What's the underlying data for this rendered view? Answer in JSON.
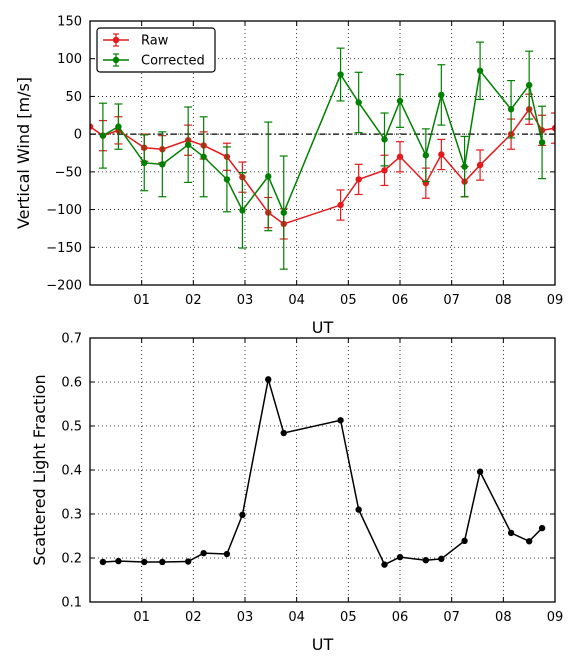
{
  "chart_data": [
    {
      "type": "line",
      "title": "",
      "xlabel": "UT",
      "ylabel": "Vertical Wind [m/s]",
      "xlim": [
        0.0,
        9.0
      ],
      "ylim": [
        -200,
        150
      ],
      "x_ticks": [
        1,
        2,
        3,
        4,
        5,
        6,
        7,
        8,
        9
      ],
      "x_tick_labels": [
        "01",
        "02",
        "03",
        "04",
        "05",
        "06",
        "07",
        "08",
        "09"
      ],
      "y_ticks": [
        -200,
        -150,
        -100,
        -50,
        0,
        50,
        100,
        150
      ],
      "y_tick_labels": [
        "−200",
        "−150",
        "−100",
        "−50",
        "0",
        "50",
        "100",
        "150"
      ],
      "grid": true,
      "zero_line": true,
      "legend_position": "top-left",
      "series": [
        {
          "name": "Raw",
          "color": "#e41a1c",
          "x": [
            0.0,
            0.25,
            0.55,
            1.05,
            1.4,
            1.9,
            2.2,
            2.65,
            2.95,
            3.45,
            3.75,
            4.85,
            5.2,
            5.7,
            6.0,
            6.5,
            6.8,
            7.25,
            7.55,
            8.15,
            8.5,
            8.75,
            9.0
          ],
          "y": [
            10,
            -2,
            5,
            -18,
            -20,
            -8,
            -15,
            -30,
            -57,
            -104,
            -119,
            -94,
            -60,
            -48,
            -30,
            -65,
            -27,
            -63,
            -41,
            0,
            33,
            5,
            8
          ],
          "yerr": [
            0,
            20,
            18,
            18,
            18,
            20,
            18,
            18,
            20,
            20,
            20,
            20,
            20,
            20,
            20,
            20,
            20,
            20,
            20,
            20,
            20,
            20,
            20
          ]
        },
        {
          "name": "Corrected",
          "color": "#008000",
          "x": [
            0.25,
            0.55,
            1.05,
            1.4,
            1.9,
            2.2,
            2.65,
            2.95,
            3.45,
            3.75,
            4.85,
            5.2,
            5.7,
            6.0,
            6.5,
            6.8,
            7.25,
            7.55,
            8.15,
            8.5,
            8.75
          ],
          "y": [
            -2,
            10,
            -38,
            -40,
            -14,
            -30,
            -60,
            -101,
            -56,
            -104,
            79,
            42,
            -7,
            44,
            -28,
            52,
            -43,
            84,
            33,
            65,
            -11
          ],
          "yerr": [
            43,
            30,
            37,
            43,
            50,
            53,
            43,
            50,
            72,
            75,
            35,
            40,
            35,
            35,
            35,
            40,
            40,
            38,
            38,
            45,
            48
          ]
        }
      ]
    },
    {
      "type": "line",
      "title": "",
      "xlabel": "UT",
      "ylabel": "Scattered Light Fraction",
      "xlim": [
        0.0,
        9.0
      ],
      "ylim": [
        0.1,
        0.7
      ],
      "x_ticks": [
        1,
        2,
        3,
        4,
        5,
        6,
        7,
        8,
        9
      ],
      "x_tick_labels": [
        "01",
        "02",
        "03",
        "04",
        "05",
        "06",
        "07",
        "08",
        "09"
      ],
      "y_ticks": [
        0.1,
        0.2,
        0.3,
        0.4,
        0.5,
        0.6,
        0.7
      ],
      "y_tick_labels": [
        "0.1",
        "0.2",
        "0.3",
        "0.4",
        "0.5",
        "0.6",
        "0.7"
      ],
      "grid": true,
      "series": [
        {
          "color": "#000000",
          "x": [
            0.25,
            0.55,
            1.05,
            1.4,
            1.9,
            2.2,
            2.65,
            2.95,
            3.45,
            3.75,
            4.85,
            5.2,
            5.7,
            6.0,
            6.5,
            6.8,
            7.25,
            7.55,
            8.15,
            8.5,
            8.75
          ],
          "y": [
            0.191,
            0.193,
            0.191,
            0.191,
            0.192,
            0.211,
            0.209,
            0.298,
            0.606,
            0.484,
            0.513,
            0.31,
            0.185,
            0.202,
            0.195,
            0.198,
            0.239,
            0.396,
            0.257,
            0.238,
            0.268
          ]
        }
      ]
    }
  ]
}
